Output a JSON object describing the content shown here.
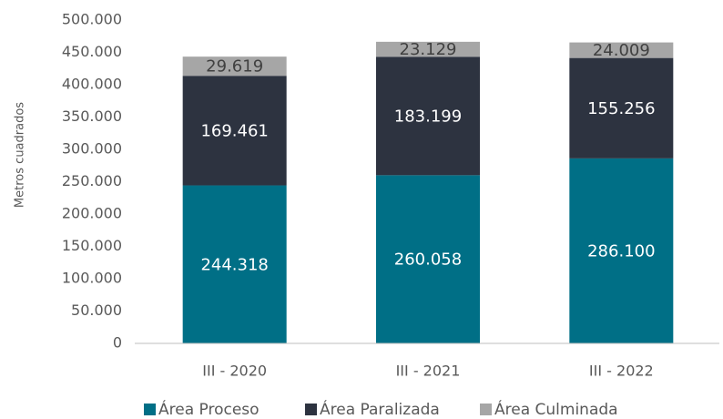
{
  "chart_data": {
    "type": "stacked_bar",
    "y_label": "Metros cuadrados",
    "categories": [
      "III - 2020",
      "III - 2021",
      "III - 2022"
    ],
    "series": [
      {
        "name": "Área Proceso",
        "color": "#006f86",
        "values": [
          244318,
          260058,
          286100
        ],
        "value_labels": [
          "244.318",
          "260.058",
          "286.100"
        ]
      },
      {
        "name": "Área Paralizada",
        "color": "#2d3340",
        "values": [
          169461,
          183199,
          155256
        ],
        "value_labels": [
          "169.461",
          "183.199",
          "155.256"
        ]
      },
      {
        "name": "Área Culminada",
        "color": "#a6a6a6",
        "values": [
          29619,
          23129,
          24009
        ],
        "value_labels": [
          "29.619",
          "23.129",
          "24.009"
        ]
      }
    ],
    "ylim": [
      0,
      500000
    ],
    "yticks": [
      0,
      {
        "value": 50000,
        "label": "50.000"
      },
      {
        "value": 100000,
        "label": "100.000"
      },
      {
        "value": 150000,
        "label": "150.000"
      },
      {
        "value": 200000,
        "label": "200.000"
      },
      {
        "value": 250000,
        "label": "250.000"
      },
      {
        "value": 300000,
        "label": "300.000"
      },
      {
        "value": 350000,
        "label": "350.000"
      },
      {
        "value": 400000,
        "label": "400.000"
      },
      {
        "value": 450000,
        "label": "450.000"
      },
      {
        "value": {
          "value": 500000,
          "label": "500.000"
        },
        "label": "500.000"
      }
    ],
    "legend": "bottom"
  }
}
